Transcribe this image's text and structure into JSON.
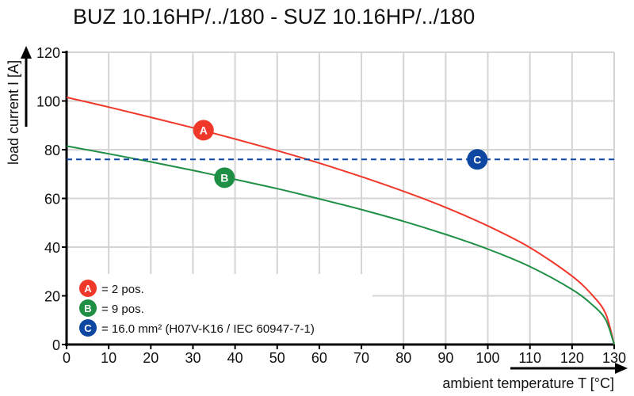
{
  "chart_data": {
    "type": "line",
    "title": "BUZ 10.16HP/../180 - SUZ 10.16HP/../180",
    "xlabel": "ambient temperature T [°C]",
    "ylabel": "load current I [A]",
    "xlim": [
      0,
      130
    ],
    "ylim": [
      0,
      120
    ],
    "xticks": [
      0,
      10,
      20,
      30,
      40,
      50,
      60,
      70,
      80,
      90,
      100,
      110,
      120,
      130
    ],
    "yticks": [
      0,
      20,
      40,
      60,
      80,
      100,
      120
    ],
    "grid": true,
    "legend_placement": "bottom-left",
    "x": [
      0,
      10,
      20,
      30,
      40,
      50,
      60,
      70,
      80,
      90,
      100,
      110,
      120,
      125,
      128,
      130
    ],
    "series": [
      {
        "marker": "A",
        "color": "#f0382a",
        "style": "solid",
        "label_pos": [
          32.5,
          88
        ],
        "values": [
          101.5,
          97.5,
          93.3,
          89.0,
          84.4,
          79.6,
          74.5,
          68.9,
          62.9,
          56.3,
          48.7,
          39.8,
          28.1,
          19.9,
          12.6,
          0
        ]
      },
      {
        "marker": "B",
        "color": "#1f8f45",
        "style": "solid",
        "label_pos": [
          37.5,
          68.5
        ],
        "values": [
          81.5,
          78.3,
          75.0,
          71.5,
          67.8,
          64.0,
          59.8,
          55.4,
          50.6,
          45.2,
          39.2,
          32.0,
          22.6,
          16.0,
          10.1,
          0
        ]
      },
      {
        "marker": "C",
        "color": "#0d47a1",
        "style": "dashed",
        "label_pos": [
          97.5,
          76
        ],
        "values": [
          76,
          76,
          76,
          76,
          76,
          76,
          76,
          76,
          76,
          76,
          76,
          76,
          76,
          76,
          76,
          76
        ]
      }
    ],
    "legend": [
      {
        "marker": "A",
        "text": "= 2 pos.",
        "color": "#f0382a"
      },
      {
        "marker": "B",
        "text": "= 9 pos.",
        "color": "#1f8f45"
      },
      {
        "marker": "C",
        "text": "= 16.0 mm² (H07V-K16 / IEC 60947-7-1)",
        "color": "#0d47a1"
      }
    ]
  }
}
